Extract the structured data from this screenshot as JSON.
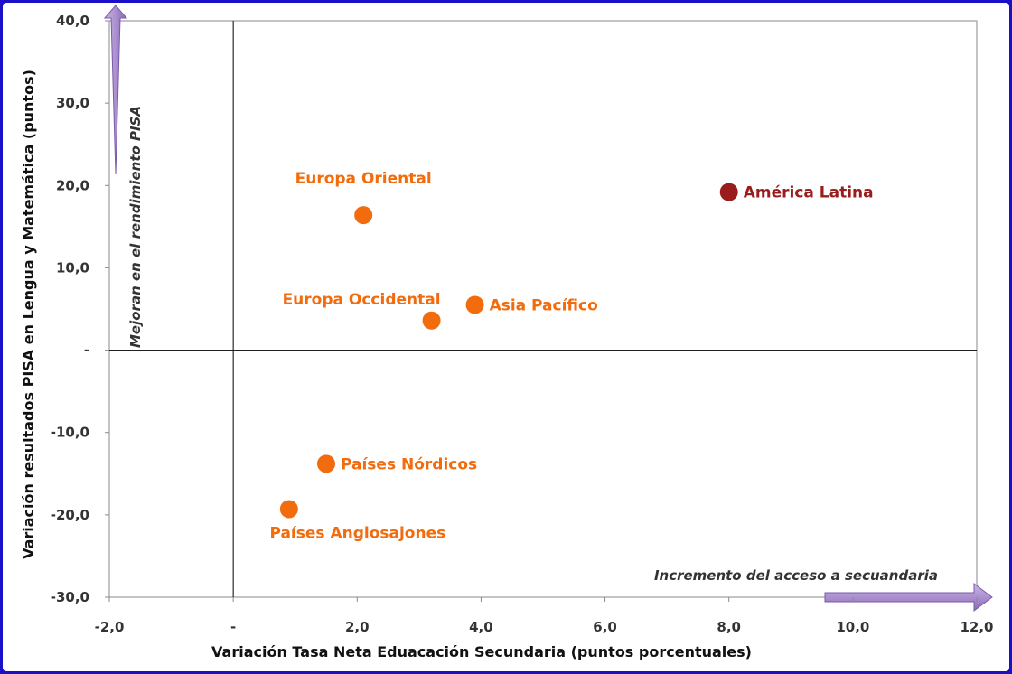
{
  "chart_data": {
    "type": "scatter",
    "title": "",
    "xlabel": "Variación Tasa Neta Eduacación Secundaria (puntos porcentuales)",
    "ylabel": "Variación resultados PISA en Lengua y Matemática (puntos)",
    "xlim": [
      -2,
      12
    ],
    "ylim": [
      -30,
      40
    ],
    "x_ticks": [
      {
        "value": -2,
        "label": "-2,0"
      },
      {
        "value": 0,
        "label": "-"
      },
      {
        "value": 2,
        "label": "2,0"
      },
      {
        "value": 4,
        "label": "4,0"
      },
      {
        "value": 6,
        "label": "6,0"
      },
      {
        "value": 8,
        "label": "8,0"
      },
      {
        "value": 10,
        "label": "10,0"
      },
      {
        "value": 12,
        "label": "12,0"
      }
    ],
    "y_ticks": [
      {
        "value": 40,
        "label": "40,0"
      },
      {
        "value": 30,
        "label": "30,0"
      },
      {
        "value": 20,
        "label": "20,0"
      },
      {
        "value": 10,
        "label": "10,0"
      },
      {
        "value": 0,
        "label": "-"
      },
      {
        "value": -10,
        "label": "-10,0"
      },
      {
        "value": -20,
        "label": "-20,0"
      },
      {
        "value": -30,
        "label": "-30,0"
      }
    ],
    "points": [
      {
        "label": "Europa Oriental",
        "x": 2.1,
        "y": 16.4,
        "color": "#f26c0d",
        "label_pos": "above"
      },
      {
        "label": "América Latina",
        "x": 8.0,
        "y": 19.2,
        "color": "#9b1c1c",
        "label_pos": "right"
      },
      {
        "label": "Europa Occidental",
        "x": 3.2,
        "y": 3.6,
        "color": "#f26c0d",
        "label_pos": "above-left"
      },
      {
        "label": "Asia Pacífico",
        "x": 3.9,
        "y": 5.5,
        "color": "#f26c0d",
        "label_pos": "right"
      },
      {
        "label": "Países Nórdicos",
        "x": 1.5,
        "y": -13.8,
        "color": "#f26c0d",
        "label_pos": "right"
      },
      {
        "label": "Países Anglosajones",
        "x": 0.9,
        "y": -19.3,
        "color": "#f26c0d",
        "label_pos": "below"
      }
    ],
    "annotations": {
      "y_arrow": "Mejoran en el rendimiento PISA",
      "x_arrow": "Incremento del acceso a secuandaria"
    },
    "grid": false,
    "legend": "none",
    "axis_color": "#888888",
    "arrow_color": "#9a7cc0"
  }
}
